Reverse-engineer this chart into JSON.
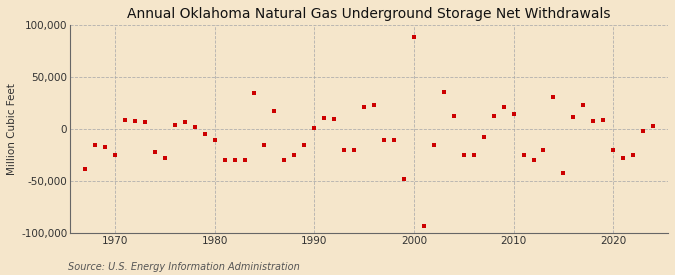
{
  "title": "Annual Oklahoma Natural Gas Underground Storage Net Withdrawals",
  "ylabel": "Million Cubic Feet",
  "source": "Source: U.S. Energy Information Administration",
  "background_color": "#f5e6cb",
  "plot_bg_color": "#f5e6cb",
  "marker_color": "#cc0000",
  "ylim": [
    -100000,
    100000
  ],
  "yticks": [
    -100000,
    -50000,
    0,
    50000,
    100000
  ],
  "xlim": [
    1965.5,
    2025.5
  ],
  "xticks": [
    1970,
    1980,
    1990,
    2000,
    2010,
    2020
  ],
  "years": [
    1967,
    1968,
    1969,
    1970,
    1971,
    1972,
    1973,
    1974,
    1975,
    1976,
    1977,
    1978,
    1979,
    1980,
    1981,
    1982,
    1983,
    1984,
    1985,
    1986,
    1987,
    1988,
    1989,
    1990,
    1991,
    1992,
    1993,
    1994,
    1995,
    1996,
    1997,
    1998,
    1999,
    2000,
    2001,
    2002,
    2003,
    2004,
    2005,
    2006,
    2007,
    2008,
    2009,
    2010,
    2011,
    2012,
    2013,
    2014,
    2015,
    2016,
    2017,
    2018,
    2019,
    2020,
    2021,
    2022,
    2023,
    2024
  ],
  "values": [
    -38000,
    -15000,
    -17000,
    -25000,
    9000,
    8000,
    7000,
    -22000,
    -28000,
    4000,
    7000,
    2000,
    -5000,
    -10000,
    -30000,
    -30000,
    -30000,
    35000,
    -15000,
    17000,
    -30000,
    -25000,
    -15000,
    1000,
    11000,
    10000,
    -20000,
    -20000,
    21000,
    23000,
    -10000,
    -10000,
    -48000,
    88000,
    -93000,
    -15000,
    36000,
    13000,
    -25000,
    -25000,
    -8000,
    13000,
    21000,
    14000,
    -25000,
    -30000,
    -20000,
    31000,
    -42000,
    12000,
    23000,
    8000,
    9000,
    -20000,
    -28000,
    -25000,
    -2000,
    3000
  ],
  "title_fontsize": 10,
  "label_fontsize": 7.5,
  "tick_fontsize": 7.5,
  "source_fontsize": 7
}
